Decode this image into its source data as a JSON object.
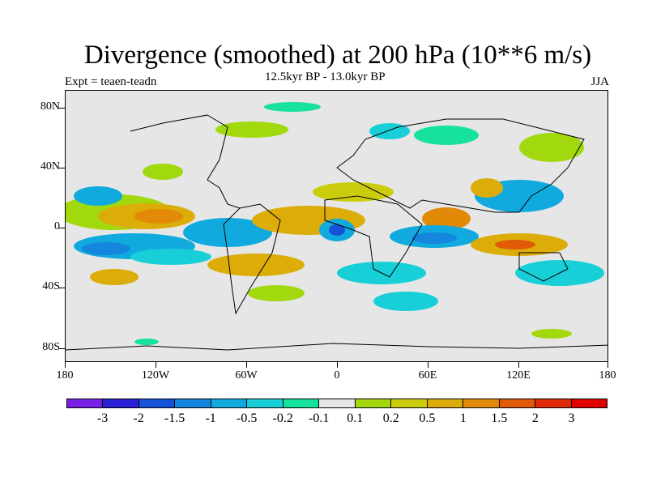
{
  "title": "Divergence (smoothed) at 200 hPa (10**6 m/s)",
  "subtitle": "12.5kyr BP - 13.0kyr BP",
  "expt": "Expt = teaen-teadn",
  "season": "JJA",
  "lat_ticks": [
    "80N",
    "40N",
    "0",
    "40S",
    "80S"
  ],
  "lon_ticks": [
    "180",
    "120W",
    "60W",
    "0",
    "60E",
    "120E",
    "180"
  ],
  "colorbar": {
    "colors": [
      "#7a1fe6",
      "#2c20d8",
      "#1452d8",
      "#1486de",
      "#10aade",
      "#18cfd8",
      "#16e29c",
      "#e6e6e6",
      "#a2d80e",
      "#cccc0e",
      "#dcac08",
      "#e28a08",
      "#e05a08",
      "#e02a08",
      "#e00000"
    ],
    "labels": [
      "-3",
      "-2",
      "-1.5",
      "-1",
      "-0.5",
      "-0.2",
      "-0.1",
      "0.1",
      "0.2",
      "0.5",
      "1",
      "1.5",
      "2",
      "3"
    ]
  }
}
